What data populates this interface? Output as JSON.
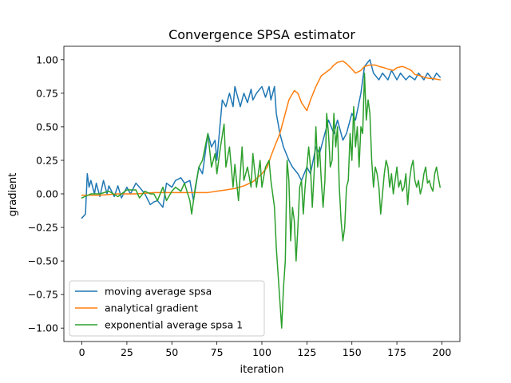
{
  "chart_data": {
    "type": "line",
    "title": "Convergence SPSA estimator",
    "xlabel": "iteration",
    "ylabel": "gradient",
    "xlim": [
      -10,
      210
    ],
    "ylim": [
      -1.1,
      1.1
    ],
    "xticks": [
      0,
      25,
      50,
      75,
      100,
      125,
      150,
      175,
      200
    ],
    "yticks": [
      -1.0,
      -0.75,
      -0.5,
      -0.25,
      0.0,
      0.25,
      0.5,
      0.75,
      1.0
    ],
    "xtick_labels": [
      "0",
      "25",
      "50",
      "75",
      "100",
      "125",
      "150",
      "175",
      "200"
    ],
    "ytick_labels": [
      "−1.00",
      "−0.75",
      "−0.50",
      "−0.25",
      "0.00",
      "0.25",
      "0.50",
      "0.75",
      "1.00"
    ],
    "grid": false,
    "legend_position": "lower-left",
    "series": [
      {
        "name": "moving average spsa",
        "color": "#1f77b4",
        "x": [
          0,
          2,
          3,
          4,
          5,
          7,
          8,
          10,
          12,
          14,
          15,
          18,
          20,
          22,
          25,
          27,
          30,
          32,
          35,
          38,
          40,
          42,
          45,
          47,
          50,
          52,
          55,
          57,
          60,
          62,
          65,
          67,
          70,
          72,
          74,
          75,
          77,
          78,
          80,
          82,
          84,
          85,
          87,
          88,
          90,
          92,
          94,
          95,
          97,
          100,
          102,
          104,
          105,
          107,
          108,
          110,
          112,
          115,
          117,
          120,
          122,
          125,
          127,
          130,
          132,
          135,
          137,
          140,
          142,
          145,
          147,
          150,
          152,
          155,
          157,
          160,
          162,
          165,
          167,
          170,
          172,
          175,
          177,
          180,
          182,
          185,
          187,
          190,
          192,
          195,
          197,
          199
        ],
        "values": [
          -0.18,
          -0.15,
          0.15,
          0.05,
          0.1,
          0.0,
          0.08,
          -0.02,
          0.1,
          0.0,
          0.06,
          -0.02,
          0.06,
          -0.03,
          0.05,
          0.0,
          0.08,
          0.05,
          0.0,
          -0.08,
          -0.06,
          -0.05,
          -0.1,
          0.08,
          0.05,
          0.1,
          0.12,
          0.08,
          0.1,
          -0.05,
          0.2,
          0.15,
          0.45,
          0.35,
          0.4,
          0.25,
          0.55,
          0.7,
          0.65,
          0.75,
          0.65,
          0.8,
          0.7,
          0.65,
          0.75,
          0.68,
          0.78,
          0.7,
          0.75,
          0.8,
          0.72,
          0.8,
          0.7,
          0.8,
          0.6,
          0.45,
          0.35,
          0.25,
          0.2,
          0.15,
          0.1,
          0.2,
          0.15,
          0.35,
          0.3,
          0.45,
          0.55,
          0.45,
          0.55,
          0.4,
          0.45,
          0.6,
          0.55,
          0.75,
          0.95,
          1.0,
          0.9,
          0.85,
          0.9,
          0.85,
          0.92,
          0.85,
          0.9,
          0.85,
          0.88,
          0.85,
          0.9,
          0.85,
          0.9,
          0.85,
          0.9,
          0.87
        ]
      },
      {
        "name": "analytical gradient",
        "color": "#ff7f0e",
        "x": [
          0,
          10,
          20,
          30,
          40,
          50,
          60,
          65,
          70,
          75,
          80,
          85,
          90,
          95,
          100,
          103,
          105,
          107,
          110,
          112,
          115,
          118,
          120,
          122,
          125,
          127,
          130,
          133,
          135,
          138,
          140,
          142,
          145,
          147,
          150,
          152,
          155,
          157,
          160,
          163,
          165,
          168,
          170,
          173,
          175,
          178,
          180,
          183,
          185,
          188,
          190,
          193,
          195,
          199
        ],
        "values": [
          -0.01,
          -0.01,
          0.0,
          0.0,
          0.01,
          0.01,
          0.01,
          0.01,
          0.01,
          0.02,
          0.03,
          0.04,
          0.06,
          0.09,
          0.15,
          0.2,
          0.28,
          0.35,
          0.45,
          0.55,
          0.7,
          0.77,
          0.75,
          0.68,
          0.62,
          0.7,
          0.8,
          0.88,
          0.9,
          0.93,
          0.96,
          0.98,
          0.99,
          0.97,
          0.93,
          0.9,
          0.92,
          0.95,
          0.96,
          0.96,
          0.95,
          0.94,
          0.93,
          0.92,
          0.94,
          0.95,
          0.94,
          0.92,
          0.89,
          0.88,
          0.87,
          0.86,
          0.86,
          0.85
        ]
      },
      {
        "name": "exponential average spsa 1",
        "color": "#2ca02c",
        "x": [
          0,
          5,
          10,
          15,
          20,
          25,
          30,
          32,
          35,
          38,
          40,
          42,
          45,
          47,
          50,
          52,
          55,
          57,
          60,
          61,
          63,
          65,
          67,
          70,
          72,
          74,
          75,
          77,
          79,
          80,
          82,
          84,
          85,
          87,
          89,
          90,
          92,
          94,
          95,
          97,
          99,
          100,
          102,
          104,
          105,
          107,
          108,
          110,
          111,
          112,
          113,
          114,
          115,
          116,
          117,
          118,
          119,
          120,
          121,
          122,
          123,
          124,
          125,
          126,
          127,
          128,
          129,
          130,
          131,
          132,
          133,
          134,
          135,
          136,
          137,
          138,
          139,
          140,
          141,
          142,
          143,
          144,
          145,
          146,
          147,
          148,
          149,
          150,
          151,
          152,
          153,
          154,
          155,
          156,
          157,
          158,
          159,
          160,
          161,
          162,
          163,
          164,
          165,
          166,
          167,
          168,
          169,
          170,
          171,
          172,
          173,
          174,
          175,
          176,
          177,
          178,
          179,
          180,
          181,
          182,
          183,
          184,
          185,
          186,
          187,
          188,
          189,
          190,
          191,
          192,
          193,
          194,
          195,
          196,
          197,
          198,
          199
        ],
        "values": [
          -0.03,
          0.0,
          0.0,
          0.02,
          -0.02,
          0.03,
          0.03,
          -0.03,
          0.02,
          0.0,
          0.0,
          -0.05,
          0.05,
          -0.05,
          0.02,
          0.05,
          0.02,
          0.08,
          -0.05,
          -0.15,
          0.05,
          0.2,
          0.25,
          0.45,
          0.2,
          0.3,
          0.15,
          0.35,
          0.52,
          0.2,
          0.35,
          0.05,
          0.22,
          -0.05,
          0.35,
          0.1,
          0.2,
          0.05,
          0.3,
          0.05,
          0.25,
          0.05,
          0.2,
          0.25,
          0.1,
          -0.1,
          -0.4,
          -0.8,
          -1.0,
          -0.7,
          -0.5,
          0.25,
          0.1,
          -0.35,
          -0.1,
          -0.2,
          -0.5,
          -0.25,
          0.05,
          0.1,
          -0.15,
          0.05,
          0.2,
          0.35,
          0.2,
          -0.1,
          0.15,
          0.5,
          0.2,
          0.35,
          0.1,
          -0.1,
          0.1,
          0.6,
          0.45,
          0.2,
          0.25,
          0.6,
          0.35,
          0.5,
          0.05,
          -0.2,
          -0.35,
          -0.25,
          0.05,
          0.1,
          0.45,
          0.25,
          0.65,
          0.35,
          0.5,
          0.2,
          0.5,
          0.45,
          0.9,
          0.55,
          0.7,
          0.6,
          0.25,
          0.05,
          0.2,
          0.15,
          0.05,
          -0.15,
          0.0,
          0.15,
          0.25,
          0.2,
          0.05,
          0.15,
          0.0,
          0.1,
          0.2,
          0.05,
          0.1,
          0.02,
          0.05,
          0.15,
          -0.08,
          0.1,
          0.2,
          0.25,
          0.1,
          0.05,
          0.1,
          0.0,
          0.05,
          0.15,
          0.2,
          0.08,
          0.1,
          0.05,
          0.02,
          0.15,
          0.2,
          0.12,
          0.05
        ]
      }
    ]
  }
}
